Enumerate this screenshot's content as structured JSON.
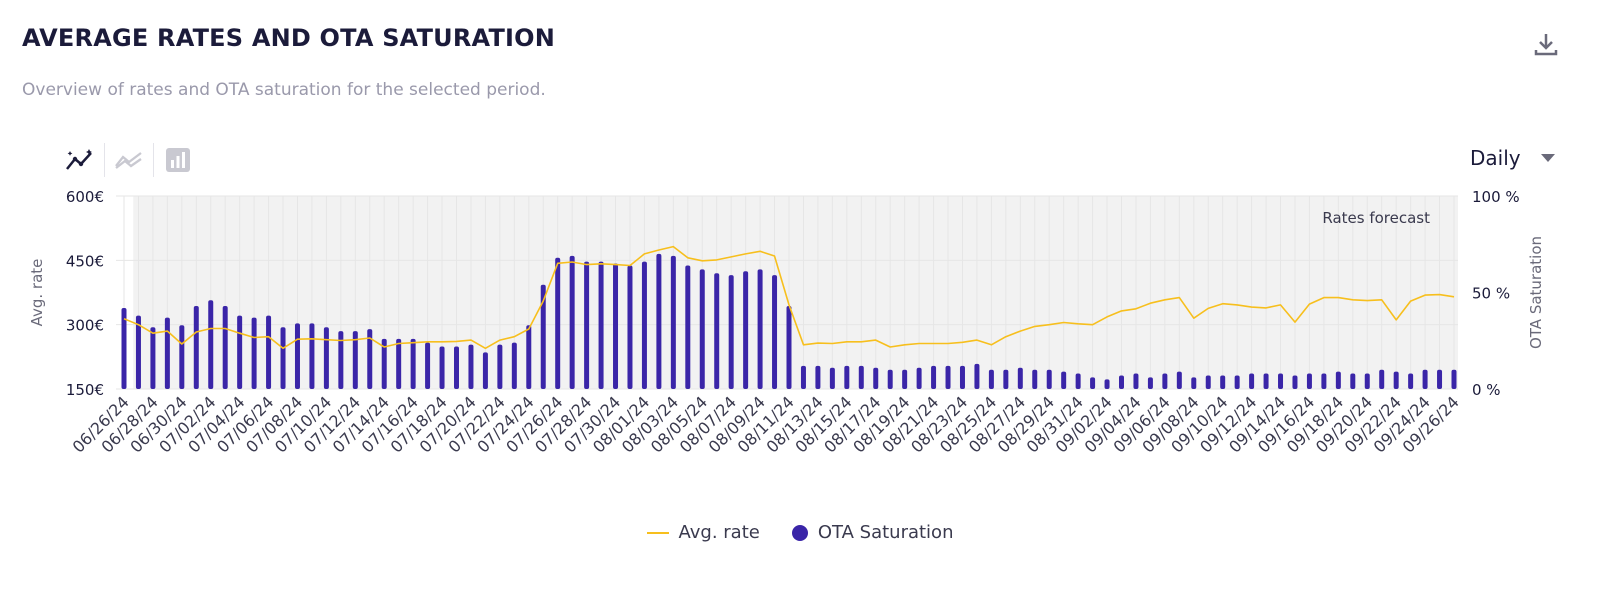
{
  "header": {
    "title": "AVERAGE RATES AND OTA SATURATION",
    "subtitle": "Overview of rates and OTA saturation for the selected period."
  },
  "icons": {
    "download": "download-icon",
    "tools": [
      "line-chart-active-icon",
      "trend-line-icon",
      "bar-chart-icon"
    ]
  },
  "period_select": {
    "value": "Daily"
  },
  "colors": {
    "avg_rate": "#f7bf1d",
    "ota": "#3a25a8",
    "forecast_bg": "#f2f2f2",
    "grid": "#e6e6e6"
  },
  "chart_data": {
    "type": "bar+line",
    "annotation": "Rates forecast",
    "forecast_start": "06/27/24",
    "y_left": {
      "label": "Avg. rate",
      "ticks": [
        "150€",
        "300€",
        "450€",
        "600€"
      ],
      "range": [
        150,
        600
      ]
    },
    "y_right": {
      "label": "OTA Saturation",
      "ticks": [
        "0 %",
        "50 %",
        "100 %"
      ],
      "range": [
        0,
        100
      ]
    },
    "x": [
      "06/26/24",
      "06/27/24",
      "06/28/24",
      "06/29/24",
      "06/30/24",
      "07/01/24",
      "07/02/24",
      "07/03/24",
      "07/04/24",
      "07/05/24",
      "07/06/24",
      "07/07/24",
      "07/08/24",
      "07/09/24",
      "07/10/24",
      "07/11/24",
      "07/12/24",
      "07/13/24",
      "07/14/24",
      "07/15/24",
      "07/16/24",
      "07/17/24",
      "07/18/24",
      "07/19/24",
      "07/20/24",
      "07/21/24",
      "07/22/24",
      "07/23/24",
      "07/24/24",
      "07/25/24",
      "07/26/24",
      "07/27/24",
      "07/28/24",
      "07/29/24",
      "07/30/24",
      "07/31/24",
      "08/01/24",
      "08/02/24",
      "08/03/24",
      "08/04/24",
      "08/05/24",
      "08/06/24",
      "08/07/24",
      "08/08/24",
      "08/09/24",
      "08/10/24",
      "08/11/24",
      "08/12/24",
      "08/13/24",
      "08/14/24",
      "08/15/24",
      "08/16/24",
      "08/17/24",
      "08/18/24",
      "08/19/24",
      "08/20/24",
      "08/21/24",
      "08/22/24",
      "08/23/24",
      "08/24/24",
      "08/25/24",
      "08/26/24",
      "08/27/24",
      "08/28/24",
      "08/29/24",
      "08/30/24",
      "08/31/24",
      "09/01/24",
      "09/02/24",
      "09/03/24",
      "09/04/24",
      "09/05/24",
      "09/06/24",
      "09/07/24",
      "09/08/24",
      "09/09/24",
      "09/10/24",
      "09/11/24",
      "09/12/24",
      "09/13/24",
      "09/14/24",
      "09/15/24",
      "09/16/24",
      "09/17/24",
      "09/18/24",
      "09/19/24",
      "09/20/24",
      "09/21/24",
      "09/22/24",
      "09/23/24",
      "09/24/24",
      "09/25/24",
      "09/26/24"
    ],
    "x_tick_labels": [
      "06/26/24",
      "06/28/24",
      "06/30/24",
      "07/02/24",
      "07/04/24",
      "07/06/24",
      "07/08/24",
      "07/10/24",
      "07/12/24",
      "07/14/24",
      "07/16/24",
      "07/18/24",
      "07/20/24",
      "07/22/24",
      "07/24/24",
      "07/26/24",
      "07/28/24",
      "07/30/24",
      "08/01/24",
      "08/03/24",
      "08/05/24",
      "08/07/24",
      "08/09/24",
      "08/11/24",
      "08/13/24",
      "08/15/24",
      "08/17/24",
      "08/19/24",
      "08/21/24",
      "08/23/24",
      "08/25/24",
      "08/27/24",
      "08/29/24",
      "08/31/24",
      "09/02/24",
      "09/04/24",
      "09/06/24",
      "09/08/24",
      "09/10/24",
      "09/12/24",
      "09/14/24",
      "09/16/24",
      "09/18/24",
      "09/20/24",
      "09/22/24",
      "09/24/24",
      "09/26/24"
    ],
    "series": [
      {
        "name": "Avg. rate",
        "type": "line",
        "axis": "left",
        "values": [
          314,
          300,
          280,
          285,
          255,
          283,
          291,
          291,
          280,
          270,
          272,
          245,
          266,
          267,
          265,
          263,
          265,
          269,
          248,
          256,
          258,
          260,
          260,
          261,
          264,
          245,
          264,
          272,
          290,
          355,
          443,
          446,
          440,
          442,
          440,
          438,
          465,
          474,
          482,
          456,
          449,
          451,
          458,
          465,
          471,
          460,
          346,
          253,
          257,
          256,
          260,
          260,
          264,
          248,
          253,
          256,
          256,
          256,
          259,
          264,
          253,
          272,
          285,
          296,
          300,
          305,
          302,
          300,
          318,
          332,
          337,
          350,
          358,
          363,
          315,
          338,
          349,
          346,
          341,
          339,
          346,
          306,
          348,
          363,
          363,
          358,
          356,
          358,
          311,
          355,
          369,
          370,
          365
        ]
      },
      {
        "name": "OTA Saturation",
        "type": "bar",
        "axis": "right",
        "values": [
          42,
          38,
          32,
          37,
          33,
          43,
          46,
          43,
          38,
          37,
          38,
          32,
          34,
          34,
          32,
          30,
          30,
          31,
          26,
          26,
          26,
          24,
          22,
          22,
          23,
          19,
          23,
          24,
          33,
          54,
          68,
          69,
          66,
          66,
          65,
          64,
          66,
          70,
          69,
          64,
          62,
          60,
          59,
          61,
          62,
          59,
          43,
          12,
          12,
          11,
          12,
          12,
          11,
          10,
          10,
          11,
          12,
          12,
          12,
          13,
          10,
          10,
          11,
          10,
          10,
          9,
          8,
          6,
          5,
          7,
          8,
          6,
          8,
          9,
          6,
          7,
          7,
          7,
          8,
          8,
          8,
          7,
          8,
          8,
          9,
          8,
          8,
          10,
          9,
          8,
          10,
          10,
          10
        ]
      }
    ],
    "legend": [
      "Avg. rate",
      "OTA Saturation"
    ],
    "legend_position": "bottom-center",
    "grid": true
  }
}
